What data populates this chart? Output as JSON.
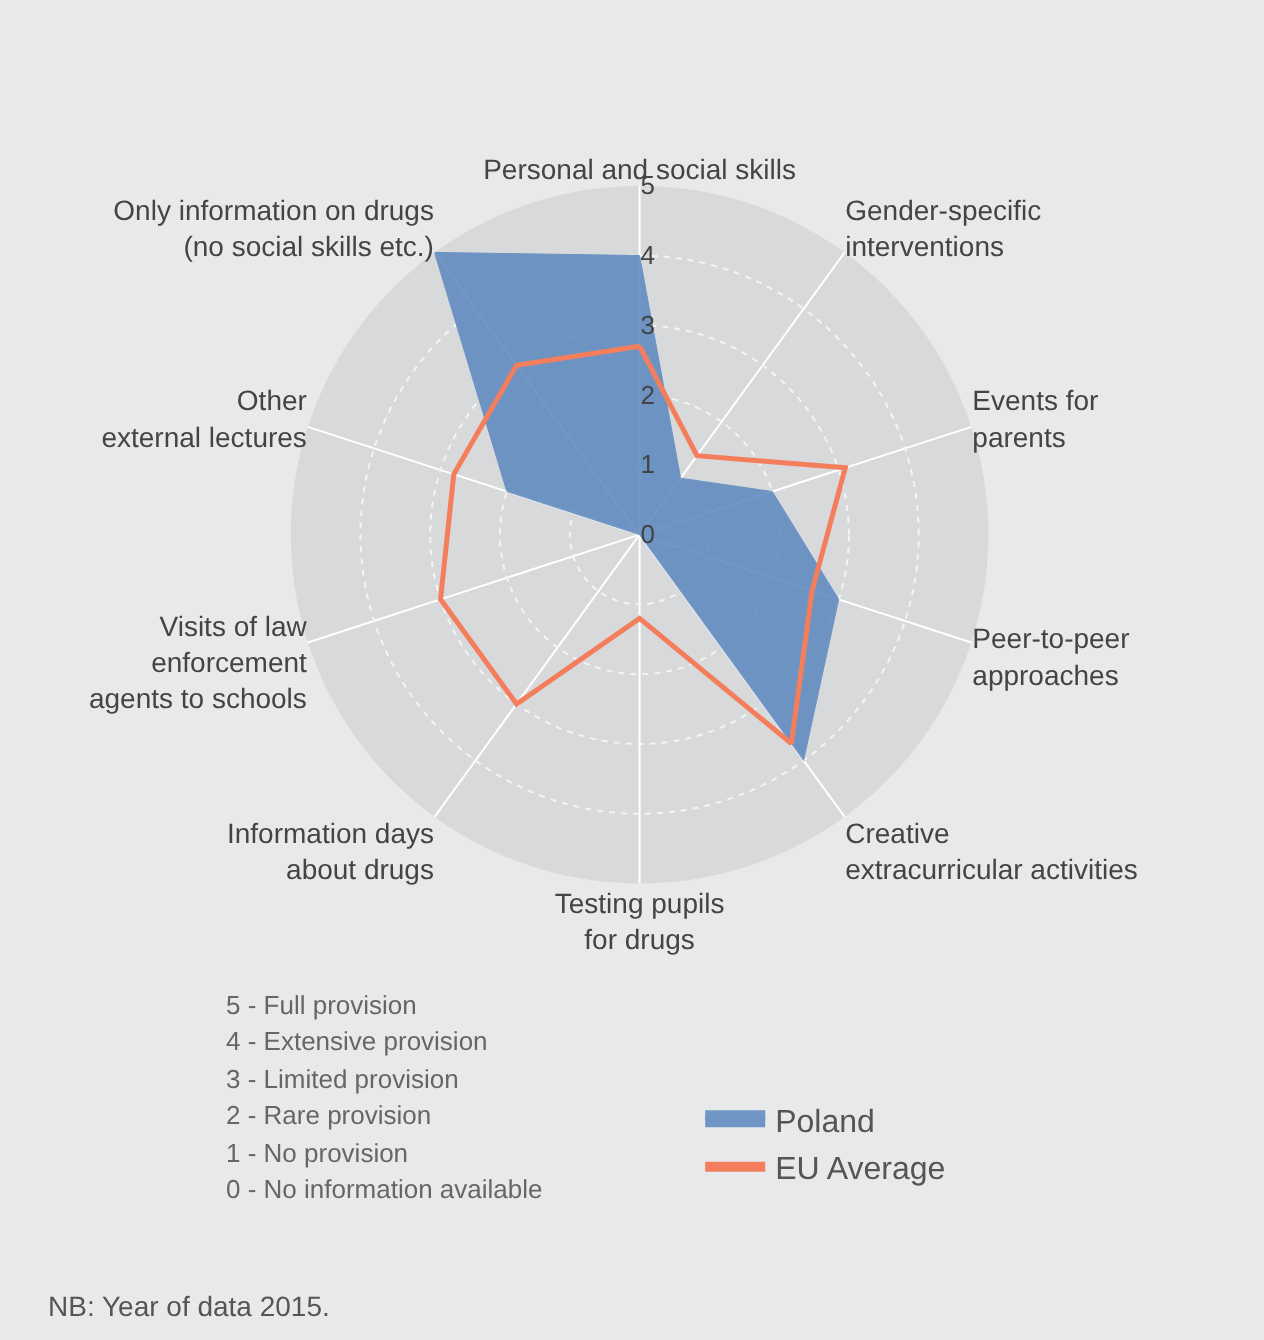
{
  "chart_data": {
    "type": "radar",
    "categories": [
      "Personal and social skills",
      "Gender-specific\ninterventions",
      "Events for\nparents",
      "Peer-to-peer\napproaches",
      "Creative\nextracurricular activities",
      "Testing pupils\nfor drugs",
      "Information days\nabout drugs",
      "Visits of law\nenforcement\nagents to schools",
      "Other\nexternal lectures",
      "Only information on drugs\n(no social skills etc.)"
    ],
    "series": [
      {
        "name": "Poland",
        "color": "#5b87bf",
        "values": [
          4,
          1,
          2,
          3,
          4,
          0,
          0,
          0,
          2,
          5
        ]
      },
      {
        "name": "EU Average",
        "color": "#f47e5c",
        "values": [
          2.7,
          1.4,
          3.1,
          2.6,
          3.7,
          1.2,
          3,
          3,
          2.8,
          3
        ]
      }
    ],
    "ylim": [
      0,
      5
    ],
    "yticks": [
      0,
      1,
      2,
      3,
      4,
      5
    ],
    "grid": true,
    "legend": "bottom",
    "marker": "none",
    "annotations": [
      "5 - Full provision",
      "4 - Extensive provision",
      "3 - Limited provision",
      "2 - Rare provision",
      "1 - No provision",
      "0 - No information available",
      "NB: Year of data 2015."
    ]
  }
}
